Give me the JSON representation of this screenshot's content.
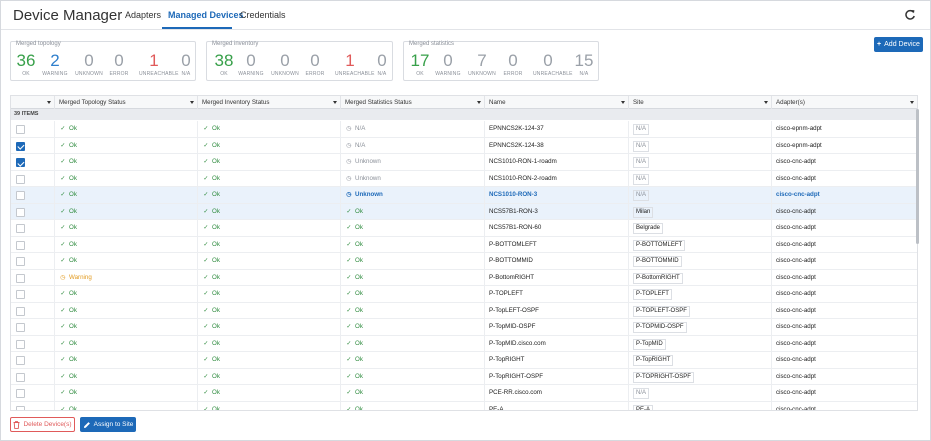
{
  "app": {
    "title": "Device Manager"
  },
  "tabs": [
    {
      "label": "Adapters"
    },
    {
      "label": "Managed Devices"
    },
    {
      "label": "Credentials"
    }
  ],
  "summaries": [
    {
      "title": "Merged topology",
      "stats": [
        {
          "value": "36",
          "label": "OK"
        },
        {
          "value": "2",
          "label": "WARNING"
        },
        {
          "value": "0",
          "label": "UNKNOWN"
        },
        {
          "value": "0",
          "label": "ERROR"
        },
        {
          "value": "1",
          "label": "UNREACHABLE"
        },
        {
          "value": "0",
          "label": "N/A"
        }
      ]
    },
    {
      "title": "Merged inventory",
      "stats": [
        {
          "value": "38",
          "label": "OK"
        },
        {
          "value": "0",
          "label": "WARNING"
        },
        {
          "value": "0",
          "label": "UNKNOWN"
        },
        {
          "value": "0",
          "label": "ERROR"
        },
        {
          "value": "1",
          "label": "UNREACHABLE"
        },
        {
          "value": "0",
          "label": "N/A"
        }
      ]
    },
    {
      "title": "Merged statistics",
      "stats": [
        {
          "value": "17",
          "label": "OK"
        },
        {
          "value": "0",
          "label": "WARNING"
        },
        {
          "value": "7",
          "label": "UNKNOWN"
        },
        {
          "value": "0",
          "label": "ERROR"
        },
        {
          "value": "0",
          "label": "UNREACHABLE"
        },
        {
          "value": "15",
          "label": "N/A"
        }
      ]
    }
  ],
  "add_button": {
    "label": "Add Device"
  },
  "table": {
    "columns": [
      "",
      "Merged Topology Status",
      "Merged Inventory Status",
      "Merged Statistics Status",
      "Name",
      "Site",
      "Adapter(s)"
    ],
    "items_label": "39 ITEMS",
    "rows": [
      {
        "checked": false,
        "highlight": false,
        "topo": "Ok",
        "inv": "Ok",
        "stats": "N/A",
        "name": "EPNNCS2K-124-37",
        "site": "N/A",
        "adapter": "cisco-epnm-adpt"
      },
      {
        "checked": true,
        "highlight": false,
        "topo": "Ok",
        "inv": "Ok",
        "stats": "N/A",
        "name": "EPNNCS2K-124-38",
        "site": "N/A",
        "adapter": "cisco-epnm-adpt"
      },
      {
        "checked": true,
        "highlight": false,
        "topo": "Ok",
        "inv": "Ok",
        "stats": "Unknown",
        "name": "NCS1010-RON-1-roadm",
        "site": "N/A",
        "adapter": "cisco-cnc-adpt"
      },
      {
        "checked": false,
        "highlight": false,
        "topo": "Ok",
        "inv": "Ok",
        "stats": "Unknown",
        "name": "NCS1010-RON-2-roadm",
        "site": "N/A",
        "adapter": "cisco-cnc-adpt"
      },
      {
        "checked": false,
        "highlight": true,
        "topo": "Ok",
        "inv": "Ok",
        "stats": "Unknown",
        "name": "NCS1010-RON-3",
        "site": "N/A",
        "adapter": "cisco-cnc-adpt"
      },
      {
        "checked": false,
        "highlight": true,
        "topo": "Ok",
        "inv": "Ok",
        "stats": "Ok",
        "name": "NCS57B1-RON-3",
        "site": "Milan",
        "adapter": "cisco-cnc-adpt"
      },
      {
        "checked": false,
        "highlight": false,
        "topo": "Ok",
        "inv": "Ok",
        "stats": "Ok",
        "name": "NCS57B1-RON-60",
        "site": "Belgrade",
        "adapter": "cisco-cnc-adpt"
      },
      {
        "checked": false,
        "highlight": false,
        "topo": "Ok",
        "inv": "Ok",
        "stats": "Ok",
        "name": "P-BOTTOMLEFT",
        "site": "P-BOTTOMLEFT",
        "adapter": "cisco-cnc-adpt"
      },
      {
        "checked": false,
        "highlight": false,
        "topo": "Ok",
        "inv": "Ok",
        "stats": "Ok",
        "name": "P-BOTTOMMID",
        "site": "P-BOTTOMMID",
        "adapter": "cisco-cnc-adpt"
      },
      {
        "checked": false,
        "highlight": false,
        "topo": "Warning",
        "inv": "Ok",
        "stats": "Ok",
        "name": "P-BottomRIGHT",
        "site": "P-BottomRIGHT",
        "adapter": "cisco-cnc-adpt"
      },
      {
        "checked": false,
        "highlight": false,
        "topo": "Ok",
        "inv": "Ok",
        "stats": "Ok",
        "name": "P-TOPLEFT",
        "site": "P-TOPLEFT",
        "adapter": "cisco-cnc-adpt"
      },
      {
        "checked": false,
        "highlight": false,
        "topo": "Ok",
        "inv": "Ok",
        "stats": "Ok",
        "name": "P-TopLEFT-OSPF",
        "site": "P-TOPLEFT-OSPF",
        "adapter": "cisco-cnc-adpt"
      },
      {
        "checked": false,
        "highlight": false,
        "topo": "Ok",
        "inv": "Ok",
        "stats": "Ok",
        "name": "P-TopMID-OSPF",
        "site": "P-TOPMID-OSPF",
        "adapter": "cisco-cnc-adpt"
      },
      {
        "checked": false,
        "highlight": false,
        "topo": "Ok",
        "inv": "Ok",
        "stats": "Ok",
        "name": "P-TopMID.cisco.com",
        "site": "P-TopMID",
        "adapter": "cisco-cnc-adpt"
      },
      {
        "checked": false,
        "highlight": false,
        "topo": "Ok",
        "inv": "Ok",
        "stats": "Ok",
        "name": "P-TopRIGHT",
        "site": "P-TopRIGHT",
        "adapter": "cisco-cnc-adpt"
      },
      {
        "checked": false,
        "highlight": false,
        "topo": "Ok",
        "inv": "Ok",
        "stats": "Ok",
        "name": "P-TopRIGHT-OSPF",
        "site": "P-TOPRIGHT-OSPF",
        "adapter": "cisco-cnc-adpt"
      },
      {
        "checked": false,
        "highlight": false,
        "topo": "Ok",
        "inv": "Ok",
        "stats": "Ok",
        "name": "PCE-RR.cisco.com",
        "site": "N/A",
        "adapter": "cisco-cnc-adpt"
      },
      {
        "checked": false,
        "highlight": false,
        "topo": "Ok",
        "inv": "Ok",
        "stats": "Ok",
        "name": "PE-A",
        "site": "PE-A",
        "adapter": "cisco-cnc-adpt"
      }
    ]
  },
  "footer": {
    "delete_label": "Delete Device(s)",
    "assign_label": "Assign to Site"
  },
  "colors": {
    "accent": "#1d69b8",
    "ok": "#2e8b3e",
    "warning": "#e29b20",
    "unreachable": "#e05a5a"
  }
}
